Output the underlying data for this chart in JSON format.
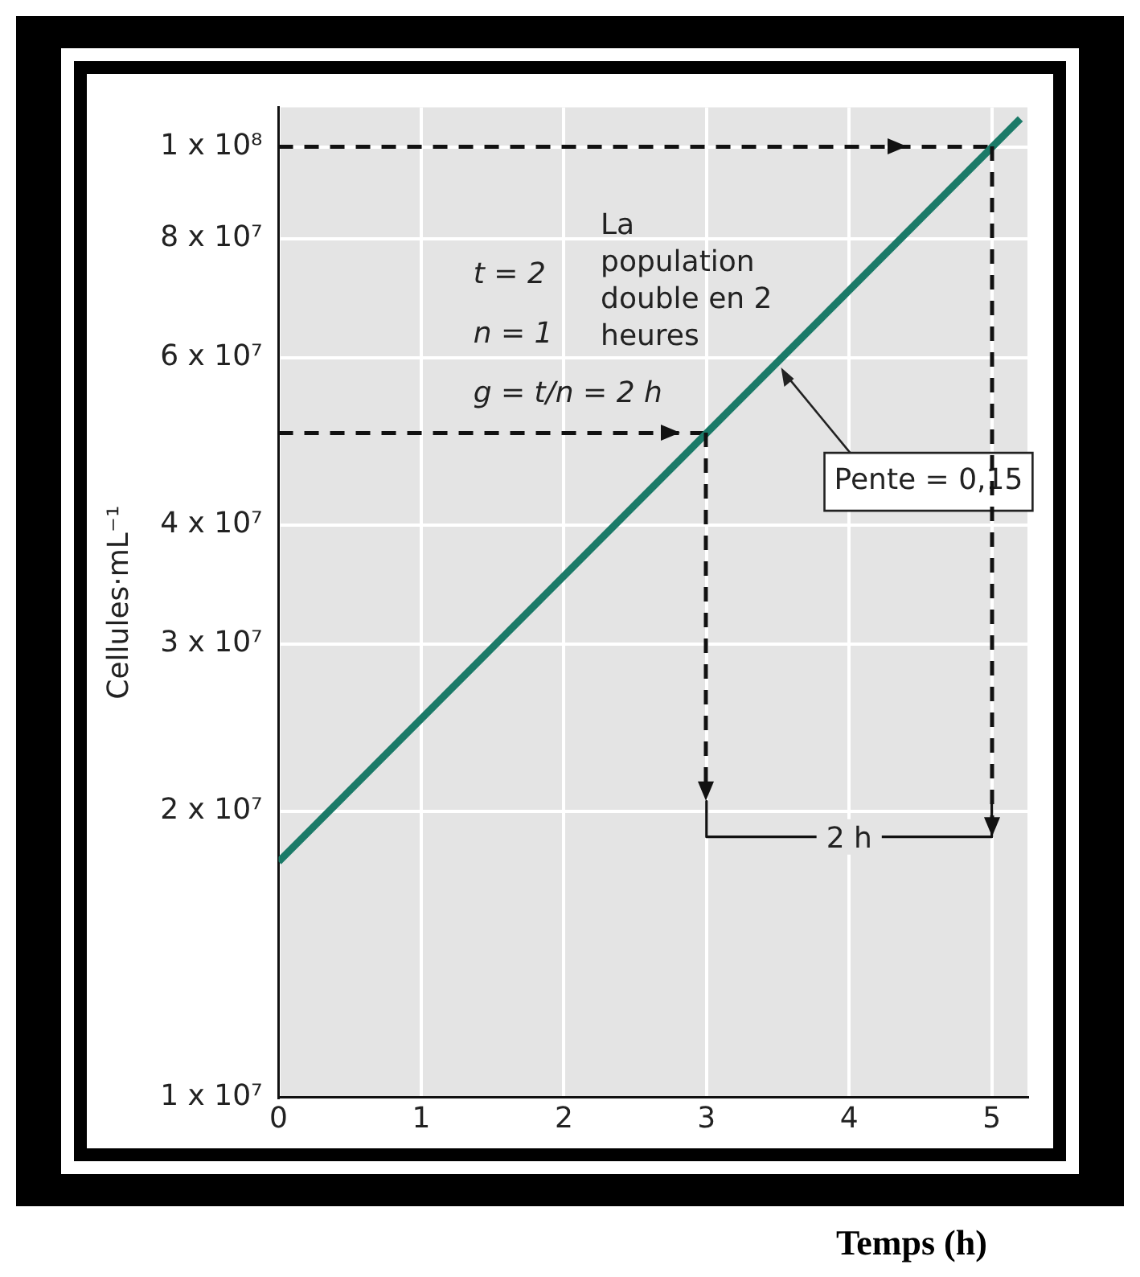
{
  "chart_data": {
    "type": "line",
    "xlabel": "Temps (h)",
    "ylabel": "Cellules·mL⁻¹",
    "log": "y",
    "xlim": [
      0,
      5.25
    ],
    "xticks": [
      0,
      1,
      2,
      3,
      4,
      5
    ],
    "ylim": [
      10000000,
      110000000
    ],
    "yticks": [
      {
        "value": 10000000,
        "label": "1 x 10⁷"
      },
      {
        "value": 20000000,
        "label": "2 x 10⁷"
      },
      {
        "value": 30000000,
        "label": "3 x 10⁷"
      },
      {
        "value": 40000000,
        "label": "4 x 10⁷"
      },
      {
        "value": 60000000,
        "label": "6 x 10⁷"
      },
      {
        "value": 80000000,
        "label": "8 x 10⁷"
      },
      {
        "value": 100000000,
        "label": "1 x 10⁸"
      }
    ],
    "grid": true,
    "legend": false,
    "marker": "none",
    "series": [
      {
        "color": "#1b7a68",
        "x": [
          0,
          5.2
        ],
        "values": [
          17700000,
          107000000
        ]
      },
      {
        "color": "#111111",
        "line_style": "dashed",
        "x": [
          0,
          5
        ],
        "values": [
          100000000,
          100000000
        ]
      },
      {
        "color": "#111111",
        "line_style": "dashed",
        "x": [
          0,
          3
        ],
        "values": [
          50000000,
          50000000
        ]
      },
      {
        "color": "#111111",
        "x": [
          3,
          3,
          5,
          5
        ],
        "values": [
          20500000,
          18800000,
          18800000,
          20500000
        ]
      }
    ],
    "annotations": [
      "t = 2",
      "n = 1",
      "g = t/n = 2 h",
      "La population double en 2 heures",
      {
        "text": "Pente = 0,15",
        "x": 3.5,
        "y": 59500000
      },
      {
        "text": "2 h",
        "x": 4,
        "y": 18800000
      }
    ]
  }
}
